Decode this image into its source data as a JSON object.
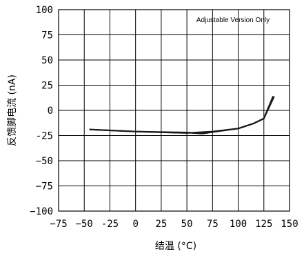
{
  "chart_data": {
    "type": "line",
    "title": "",
    "xlabel": "结温 (°C)",
    "ylabel": "反馈脚电流 (nA)",
    "annotation": "Adjustable Version Only",
    "xlim": [
      -75,
      150
    ],
    "ylim": [
      -100,
      100
    ],
    "grid": true,
    "x_ticks": [
      "−75",
      "−50",
      "-25",
      "0",
      "25",
      "50",
      "75",
      "100",
      "125",
      "150"
    ],
    "y_ticks": [
      "100",
      "75",
      "50",
      "25",
      "0",
      "-25",
      "−50",
      "−75",
      "−100"
    ],
    "series": [
      {
        "x": [
          -45,
          0,
          50,
          75,
          100,
          115,
          125,
          135
        ],
        "values": [
          -19,
          -21,
          -22.5,
          -21,
          -18,
          -13,
          -8,
          14
        ]
      },
      {
        "x": [
          -45,
          0,
          50,
          65,
          75,
          100,
          115,
          125,
          134
        ],
        "values": [
          -19,
          -21,
          -22,
          -23,
          -21.5,
          -18,
          -13,
          -8,
          14
        ]
      }
    ]
  }
}
